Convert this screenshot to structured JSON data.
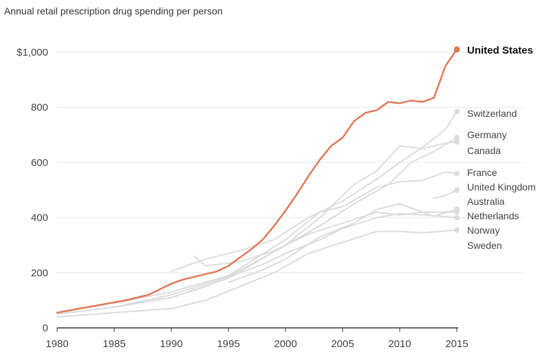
{
  "chart_data": {
    "type": "line",
    "title": "Annual retail prescription drug spending per person",
    "xlabel": "",
    "ylabel": "",
    "xlim": [
      1980,
      2015
    ],
    "ylim": [
      0,
      1000
    ],
    "x_ticks": [
      1980,
      1985,
      1990,
      1995,
      2000,
      2005,
      2010,
      2015
    ],
    "y_ticks": [
      {
        "value": 0,
        "label": "0"
      },
      {
        "value": 200,
        "label": "200"
      },
      {
        "value": 400,
        "label": "400"
      },
      {
        "value": 600,
        "label": "600"
      },
      {
        "value": 800,
        "label": "800"
      },
      {
        "value": 1000,
        "label": "$1,000"
      }
    ],
    "grid": "horizontal",
    "colors": {
      "highlight": "#e07858",
      "others": "#dcdcdc",
      "grid": "#e8e8e8",
      "axis": "#333333"
    },
    "series": [
      {
        "name": "United States",
        "highlight": true,
        "x": [
          1980,
          1982,
          1984,
          1986,
          1988,
          1990,
          1991,
          1992,
          1993,
          1994,
          1995,
          1996,
          1997,
          1998,
          1999,
          2000,
          2001,
          2002,
          2003,
          2004,
          2005,
          2006,
          2007,
          2008,
          2009,
          2010,
          2011,
          2012,
          2013,
          2014,
          2015
        ],
        "y": [
          55,
          70,
          85,
          100,
          120,
          160,
          175,
          185,
          195,
          205,
          225,
          255,
          285,
          320,
          370,
          425,
          485,
          550,
          610,
          660,
          690,
          750,
          780,
          790,
          820,
          815,
          825,
          820,
          835,
          950,
          1010
        ]
      },
      {
        "name": "Switzerland",
        "x": [
          1990,
          1993,
          1996,
          1999,
          2002,
          2005,
          2008,
          2010,
          2012,
          2014,
          2015
        ],
        "y": [
          205,
          250,
          280,
          320,
          400,
          460,
          540,
          600,
          655,
          720,
          785
        ]
      },
      {
        "name": "Germany",
        "x": [
          1980,
          1985,
          1990,
          1995,
          2000,
          2003,
          2006,
          2009,
          2011,
          2013,
          2015
        ],
        "y": [
          50,
          75,
          110,
          180,
          300,
          370,
          450,
          520,
          600,
          640,
          690
        ]
      },
      {
        "name": "Canada",
        "x": [
          1985,
          1990,
          1995,
          2000,
          2003,
          2006,
          2008,
          2010,
          2012,
          2014,
          2015
        ],
        "y": [
          75,
          120,
          185,
          300,
          400,
          520,
          570,
          660,
          650,
          670,
          675
        ]
      },
      {
        "name": "France",
        "x": [
          1985,
          1990,
          1995,
          2000,
          2003,
          2005,
          2008,
          2010,
          2012,
          2014,
          2015
        ],
        "y": [
          90,
          130,
          190,
          320,
          420,
          440,
          510,
          530,
          535,
          565,
          560
        ]
      },
      {
        "name": "United Kingdom",
        "x": [
          2013,
          2014,
          2015
        ],
        "y": [
          470,
          480,
          500
        ]
      },
      {
        "name": "Australia",
        "x": [
          1995,
          1998,
          2000,
          2003,
          2006,
          2008,
          2010,
          2012,
          2013,
          2015
        ],
        "y": [
          165,
          210,
          250,
          330,
          380,
          430,
          450,
          420,
          405,
          430
        ]
      },
      {
        "name": "Netherlands",
        "x": [
          1990,
          1993,
          1995,
          1998,
          2000,
          2003,
          2005,
          2008,
          2010,
          2012,
          2015
        ],
        "y": [
          110,
          150,
          185,
          230,
          270,
          320,
          360,
          400,
          415,
          410,
          400
        ]
      },
      {
        "name": "Norway",
        "x": [
          1980,
          1985,
          1990,
          1993,
          1996,
          1999,
          2002,
          2005,
          2008,
          2010,
          2012,
          2015
        ],
        "y": [
          40,
          55,
          70,
          100,
          150,
          200,
          270,
          310,
          350,
          350,
          345,
          355
        ]
      },
      {
        "name": "Sweden",
        "x": [
          1992,
          1993,
          1996,
          1999,
          2002,
          2005,
          2008,
          2010,
          2012,
          2015
        ],
        "y": [
          260,
          225,
          240,
          280,
          340,
          380,
          420,
          410,
          420,
          420
        ]
      }
    ]
  }
}
